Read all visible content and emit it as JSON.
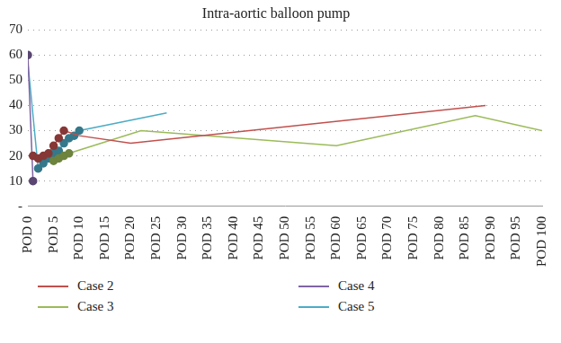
{
  "chart_data": {
    "type": "line",
    "title": "Intra-aortic balloon pump",
    "xlim": [
      0,
      100
    ],
    "xticks": [
      {
        "value": 0,
        "label": "POD 0"
      },
      {
        "value": 5,
        "label": "POD 5"
      },
      {
        "value": 10,
        "label": "POD 10"
      },
      {
        "value": 15,
        "label": "POD 15"
      },
      {
        "value": 20,
        "label": "POD 20"
      },
      {
        "value": 25,
        "label": "POD 25"
      },
      {
        "value": 30,
        "label": "POD 30"
      },
      {
        "value": 35,
        "label": "POD 35"
      },
      {
        "value": 40,
        "label": "POD 40"
      },
      {
        "value": 45,
        "label": "POD 45"
      },
      {
        "value": 50,
        "label": "POD 50"
      },
      {
        "value": 55,
        "label": "POD 55"
      },
      {
        "value": 60,
        "label": "POD 60"
      },
      {
        "value": 65,
        "label": "POD 65"
      },
      {
        "value": 70,
        "label": "POD 70"
      },
      {
        "value": 75,
        "label": "POD 75"
      },
      {
        "value": 80,
        "label": "POD 80"
      },
      {
        "value": 85,
        "label": "POD 85"
      },
      {
        "value": 90,
        "label": "POD 90"
      },
      {
        "value": 95,
        "label": "POD 95"
      },
      {
        "value": 100,
        "label": "POD 100"
      }
    ],
    "ylim": [
      0,
      70
    ],
    "yticks": [
      {
        "value": 0,
        "label": "-"
      },
      10,
      20,
      30,
      40,
      50,
      60,
      70
    ],
    "grid": true,
    "legend": "bottom",
    "series": [
      {
        "name": "Case 2",
        "color": "#c0504d",
        "marker": "circle",
        "x": [
          1,
          2,
          3,
          4,
          5,
          6,
          7,
          10,
          20,
          89
        ],
        "values": [
          20,
          19,
          20,
          21,
          24,
          27,
          30,
          28,
          25,
          40
        ]
      },
      {
        "name": "Case 3",
        "color": "#9bbb59",
        "marker": "circle",
        "x": [
          5,
          6,
          7,
          8,
          22,
          60,
          87,
          100
        ],
        "values": [
          18,
          19,
          20,
          21,
          30,
          24,
          36,
          30
        ]
      },
      {
        "name": "Case 4",
        "color": "#8064a2",
        "marker": "circle",
        "x": [
          0,
          1
        ],
        "values": [
          60,
          10
        ]
      },
      {
        "name": "Case 5",
        "color": "#4bacc6",
        "marker": "circle",
        "x": [
          0,
          2,
          3,
          4,
          5,
          6,
          7,
          8,
          9,
          10,
          27
        ],
        "values": [
          57,
          15,
          17,
          19,
          21,
          22,
          25,
          27,
          28,
          30,
          37
        ]
      }
    ]
  }
}
